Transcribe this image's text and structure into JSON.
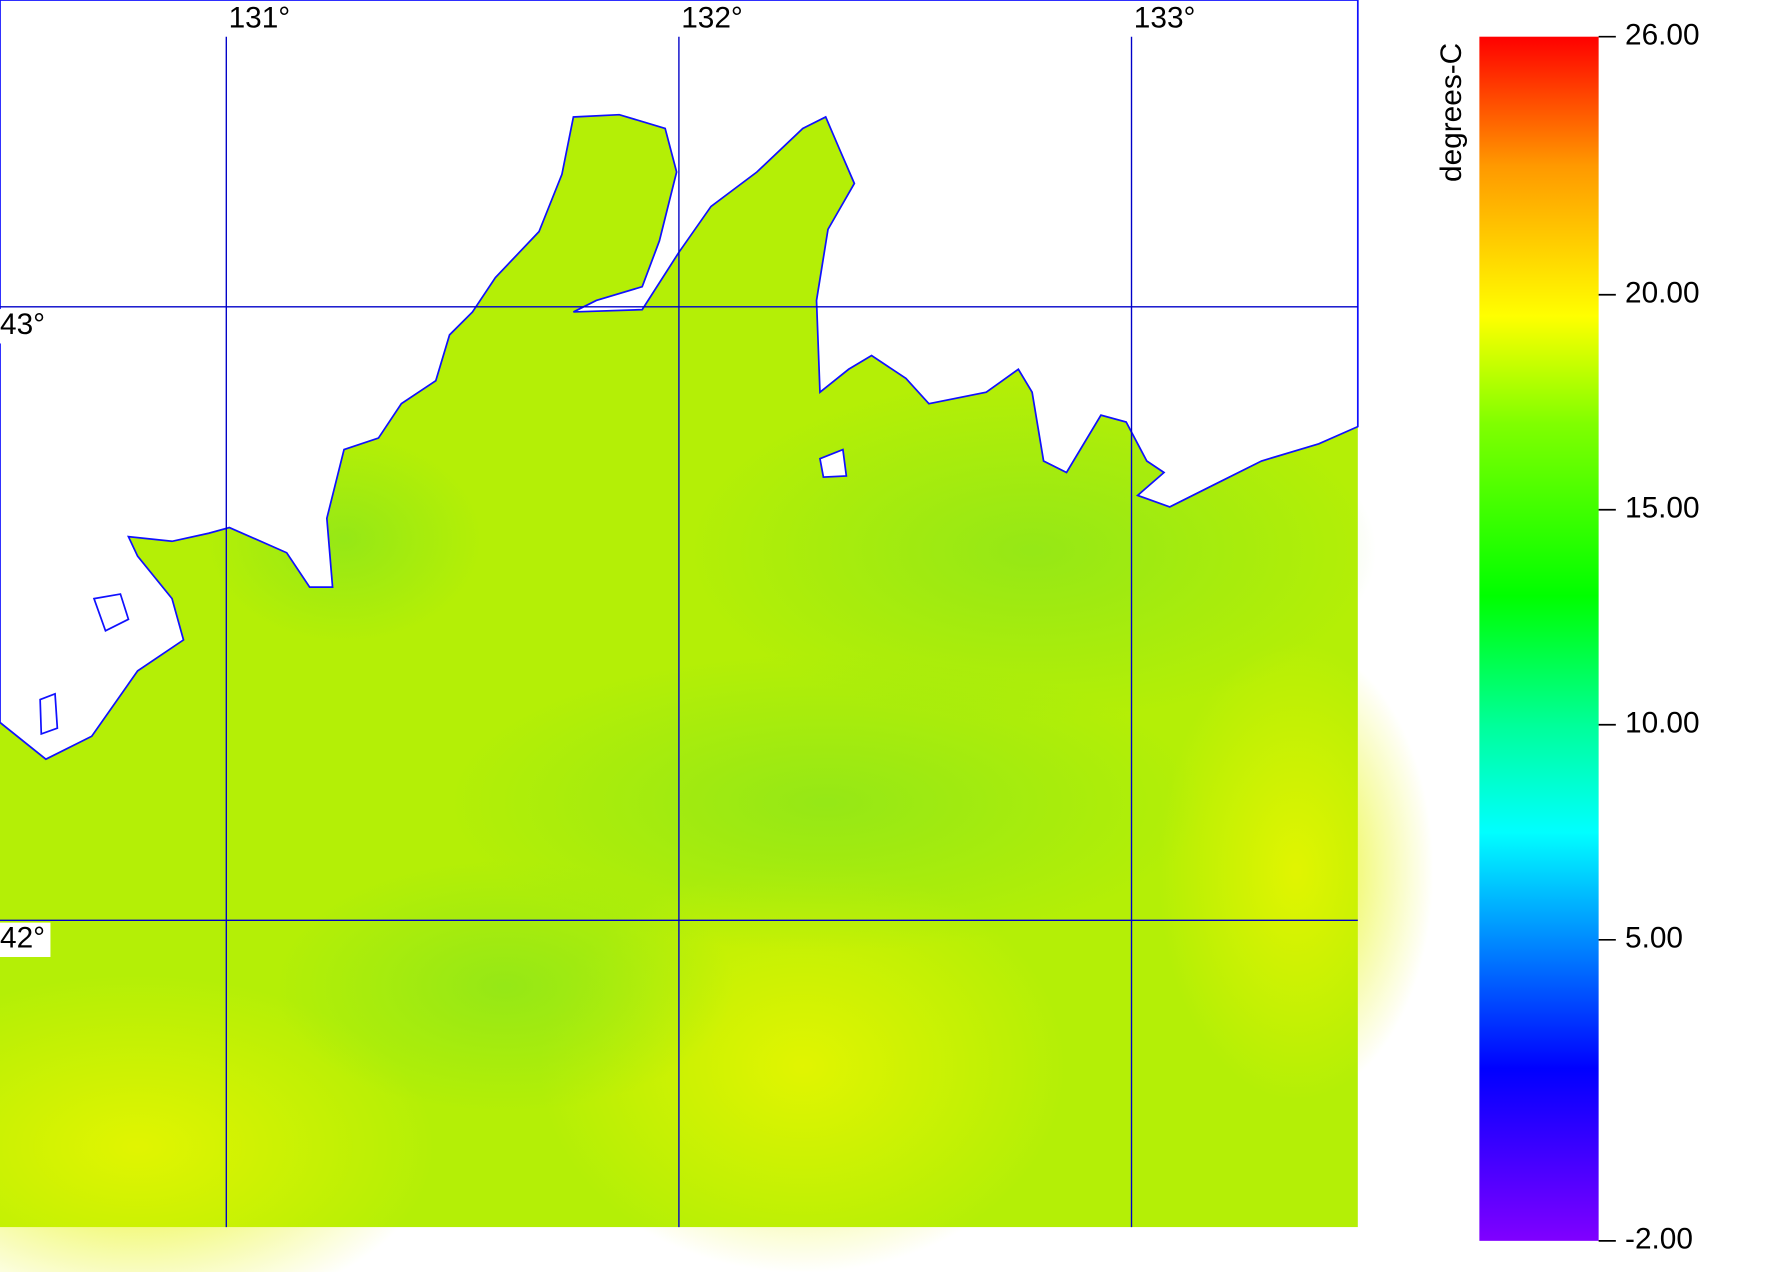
{
  "map": {
    "lonlim": [
      130.5,
      133.5
    ],
    "latlim": [
      41.5,
      43.5
    ],
    "lonticks": [
      {
        "value": 131,
        "label": "131°"
      },
      {
        "value": 132,
        "label": "132°"
      },
      {
        "value": 133,
        "label": "133°"
      }
    ],
    "latticks": [
      {
        "value": 43,
        "label": "43°"
      },
      {
        "value": 42,
        "label": "42°"
      }
    ],
    "grid_color": "#0000c8",
    "colorbar": {
      "label": "degrees-C",
      "lim": [
        -2,
        26
      ],
      "ticks": [
        {
          "value": 26,
          "label": "26.00"
        },
        {
          "value": 20,
          "label": "20.00"
        },
        {
          "value": 15,
          "label": "15.00"
        },
        {
          "value": 10,
          "label": "10.00"
        },
        {
          "value": 5,
          "label": "5.00"
        },
        {
          "value": -2,
          "label": "-2.00"
        }
      ],
      "stops": [
        {
          "value": -2,
          "color": "#8000ff"
        },
        {
          "value": 2,
          "color": "#0000ff"
        },
        {
          "value": 7.5,
          "color": "#00ffff"
        },
        {
          "value": 10,
          "color": "#00ff99"
        },
        {
          "value": 13,
          "color": "#00ff00"
        },
        {
          "value": 17,
          "color": "#80ff00"
        },
        {
          "value": 19.5,
          "color": "#ffff00"
        },
        {
          "value": 23,
          "color": "#ff9900"
        },
        {
          "value": 26,
          "color": "#ff0000"
        }
      ]
    }
  }
}
